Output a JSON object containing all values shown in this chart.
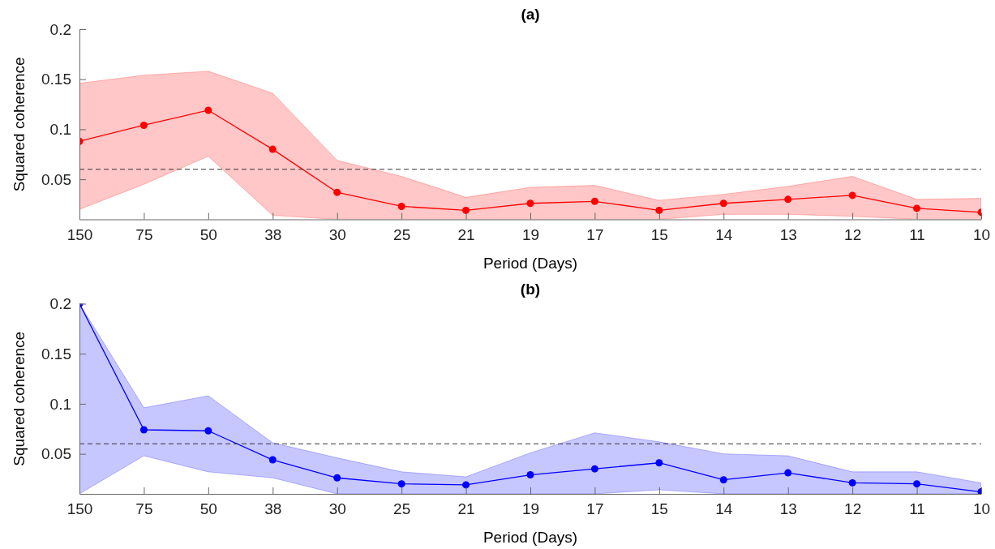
{
  "chart_data": [
    {
      "type": "line",
      "title": "(a)",
      "xlabel": "Period (Days)",
      "ylabel": "Squared coherence",
      "categories": [
        "150",
        "75",
        "50",
        "38",
        "30",
        "25",
        "21",
        "19",
        "17",
        "15",
        "14",
        "13",
        "12",
        "11",
        "10"
      ],
      "marker": "circle",
      "line_style": "solid",
      "ylim": [
        0.01,
        0.2
      ],
      "yticks": [
        0.05,
        0.1,
        0.15,
        0.2
      ],
      "ref_lines": [
        {
          "axis": "y",
          "value": 0.06,
          "color": "#333333",
          "line_style": "dashed"
        }
      ],
      "series": [
        {
          "color": "#ff0000",
          "values": [
            0.088,
            0.104,
            0.119,
            0.08,
            0.037,
            0.023,
            0.019,
            0.026,
            0.028,
            0.019,
            0.026,
            0.03,
            0.034,
            0.021,
            0.017
          ],
          "lower": [
            0.02,
            0.045,
            0.073,
            0.014,
            0.01,
            0.01,
            0.01,
            0.01,
            0.01,
            0.01,
            0.015,
            0.015,
            0.013,
            0.01,
            0.01
          ],
          "upper": [
            0.146,
            0.154,
            0.158,
            0.136,
            0.069,
            0.053,
            0.032,
            0.042,
            0.044,
            0.029,
            0.035,
            0.043,
            0.053,
            0.03,
            0.031
          ]
        }
      ]
    },
    {
      "type": "line",
      "title": "(b)",
      "xlabel": "Period (Days)",
      "ylabel": "Squared coherence",
      "categories": [
        "150",
        "75",
        "50",
        "38",
        "30",
        "25",
        "21",
        "19",
        "17",
        "15",
        "14",
        "13",
        "12",
        "11",
        "10"
      ],
      "marker": "circle",
      "line_style": "solid",
      "ylim": [
        0.01,
        0.2
      ],
      "yticks": [
        0.05,
        0.1,
        0.15,
        0.2
      ],
      "ref_lines": [
        {
          "axis": "y",
          "value": 0.06,
          "color": "#333333",
          "line_style": "dashed"
        }
      ],
      "series": [
        {
          "color": "#0000ff",
          "values": [
            0.2,
            0.074,
            0.073,
            0.044,
            0.026,
            0.02,
            0.019,
            0.029,
            0.035,
            0.041,
            0.024,
            0.031,
            0.021,
            0.02,
            0.012
          ],
          "lower": [
            0.01,
            0.048,
            0.032,
            0.026,
            0.01,
            0.01,
            0.01,
            0.01,
            0.01,
            0.014,
            0.01,
            0.01,
            0.01,
            0.01,
            0.01
          ],
          "upper": [
            0.2,
            0.096,
            0.108,
            0.061,
            0.046,
            0.032,
            0.027,
            0.051,
            0.071,
            0.062,
            0.05,
            0.048,
            0.032,
            0.032,
            0.021
          ]
        }
      ]
    }
  ]
}
